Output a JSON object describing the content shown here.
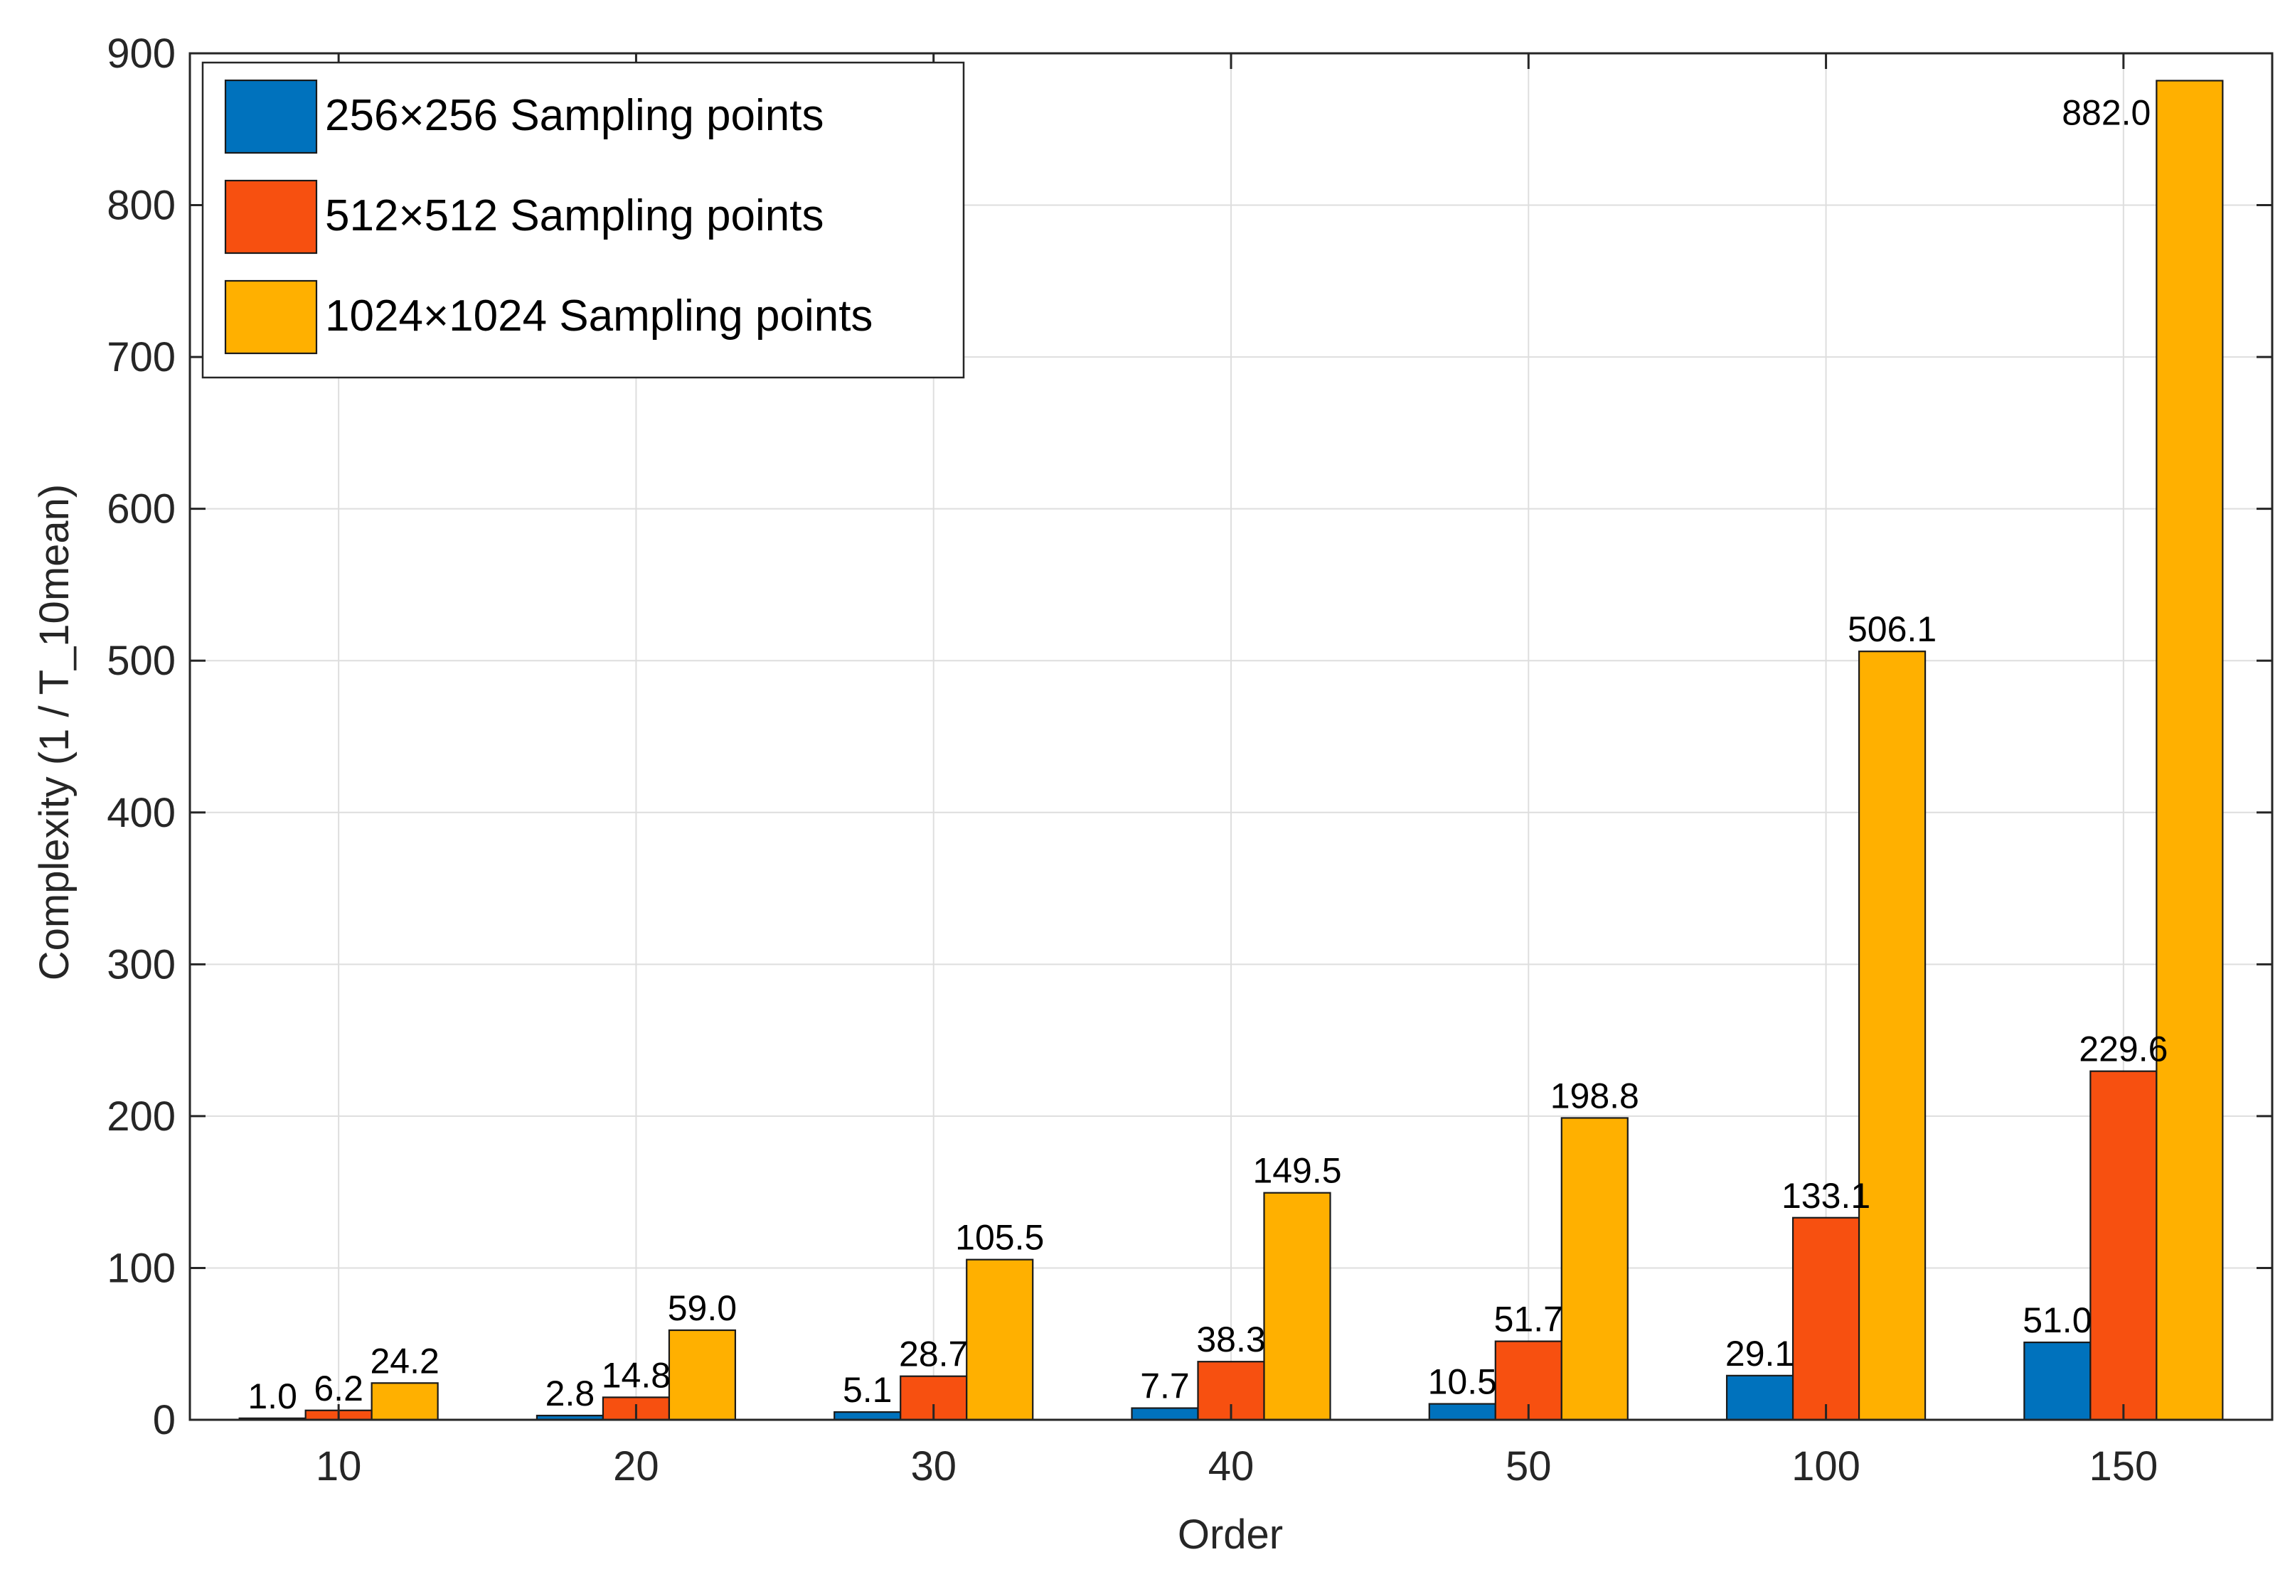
{
  "chart_data": {
    "type": "bar",
    "title": "",
    "xlabel": "Order",
    "ylabel": "Complexity (1 / T_10mean)",
    "categories": [
      "10",
      "20",
      "30",
      "40",
      "50",
      "100",
      "150"
    ],
    "ylim": [
      0,
      900
    ],
    "yticks": [
      0,
      100,
      200,
      300,
      400,
      500,
      600,
      700,
      800,
      900
    ],
    "grid": true,
    "legend_position": "top-left",
    "series": [
      {
        "name": "256×256 Sampling points",
        "color": "#0072BD",
        "values": [
          1.0,
          2.8,
          5.1,
          7.7,
          10.5,
          29.1,
          51.0
        ],
        "labels": [
          "1.0",
          "2.8",
          "5.1",
          "7.7",
          "10.5",
          "29.1",
          "51.0"
        ]
      },
      {
        "name": "512×512 Sampling points",
        "color": "#F75010",
        "values": [
          6.2,
          14.8,
          28.7,
          38.3,
          51.7,
          133.1,
          229.6
        ],
        "labels": [
          "6.2",
          "14.8",
          "28.7",
          "38.3",
          "51.7",
          "133.1",
          "229.6"
        ]
      },
      {
        "name": "1024×1024 Sampling points",
        "color": "#FFB000",
        "values": [
          24.2,
          59.0,
          105.5,
          149.5,
          198.8,
          506.1,
          882.0
        ],
        "labels": [
          "24.2",
          "59.0",
          "105.5",
          "149.5",
          "198.8",
          "506.1",
          "882.0"
        ]
      }
    ]
  }
}
